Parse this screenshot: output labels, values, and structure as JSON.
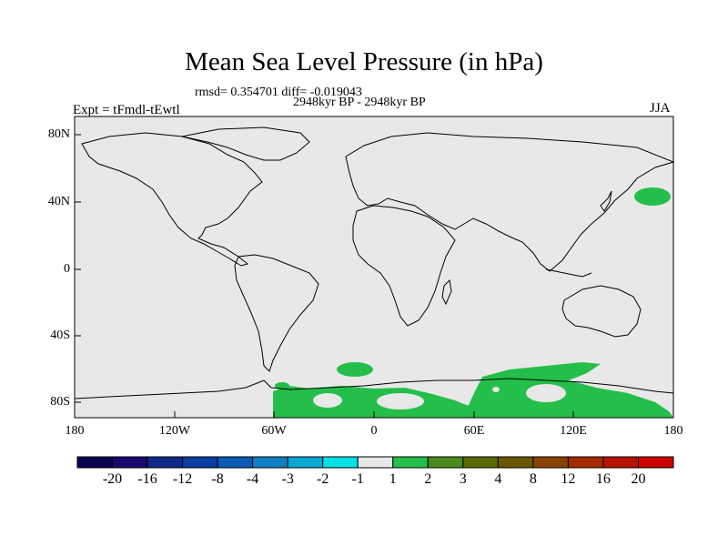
{
  "title": "Mean Sea Level Pressure (in hPa)",
  "stats": "rmsd= 0.354701 diff= -0.019043",
  "period": "2948kyr BP - 2948kyr BP",
  "expt_label": "Expt = tFmdl-tEwtl",
  "season": "JJA",
  "lat_ticks": [
    "80N",
    "40N",
    "0",
    "40S",
    "80S"
  ],
  "lon_ticks": [
    "180",
    "120W",
    "60W",
    "0",
    "60E",
    "120E",
    "180"
  ],
  "colorbar": {
    "labels": [
      "-20",
      "-16",
      "-12",
      "-8",
      "-4",
      "-3",
      "-2",
      "-1",
      "1",
      "2",
      "3",
      "4",
      "8",
      "12",
      "16",
      "20"
    ],
    "colors": [
      "#0b0050",
      "#17096e",
      "#102a8a",
      "#0a3ea3",
      "#0c5cb5",
      "#0f80c4",
      "#0aa7d2",
      "#00e1e8",
      "#e8e8e8",
      "#24be4a",
      "#4a8a1c",
      "#5a6a00",
      "#6b5600",
      "#8a4200",
      "#a42a00",
      "#b81200",
      "#cc0000"
    ]
  },
  "colors": {
    "background": "#e8e8e8",
    "positive_anomaly": "#24be4a",
    "coast": "#000000"
  }
}
